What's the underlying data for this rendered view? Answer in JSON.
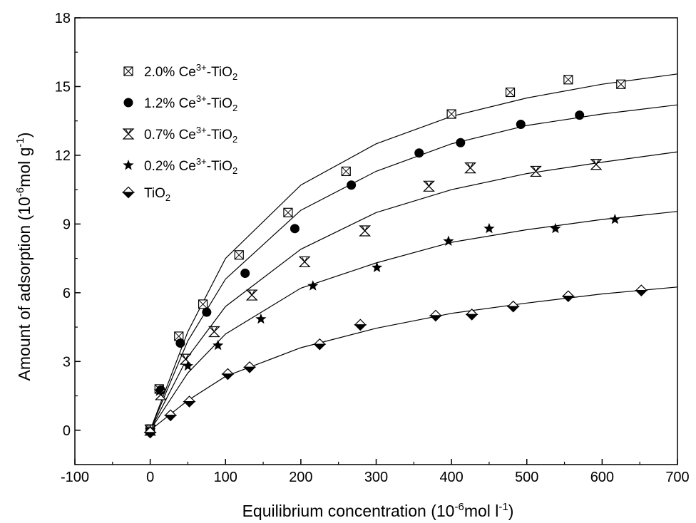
{
  "chart_data": {
    "type": "scatter",
    "title": "",
    "xlabel": {
      "prefix": "Equilibrium concentration (10",
      "exp": "-6",
      "mid": "mol l",
      "exp2": "-1",
      "suffix": ")"
    },
    "ylabel": {
      "prefix": "Amount of adsorption (10",
      "exp": "-6",
      "mid": "mol g",
      "exp2": "-1",
      "suffix": ")"
    },
    "xlim": [
      -100,
      700
    ],
    "ylim": [
      -1.5,
      18
    ],
    "xticks": [
      -100,
      0,
      100,
      200,
      300,
      400,
      500,
      600,
      700
    ],
    "yticks": [
      0,
      3,
      6,
      9,
      12,
      15,
      18
    ],
    "grid": false,
    "legend_position": "top-left",
    "series": [
      {
        "name": {
          "pre": "2.0% Ce",
          "sup": "3+",
          "mid": "-TiO",
          "sub": "2"
        },
        "marker": "square-x",
        "x": [
          0,
          12,
          38,
          70,
          118,
          183,
          260,
          400,
          478,
          555,
          625
        ],
        "y": [
          0.05,
          1.8,
          4.1,
          5.5,
          7.65,
          9.5,
          11.3,
          13.8,
          14.75,
          15.3,
          15.1
        ],
        "fit": {
          "x": [
            0,
            50,
            100,
            200,
            300,
            400,
            500,
            600,
            700
          ],
          "y": [
            0,
            4.3,
            7.5,
            10.7,
            12.5,
            13.7,
            14.5,
            15.1,
            15.55
          ]
        }
      },
      {
        "name": {
          "pre": "1.2% Ce",
          "sup": "3+",
          "mid": "-TiO",
          "sub": "2"
        },
        "marker": "circle",
        "x": [
          0,
          14,
          40,
          75,
          126,
          192,
          267,
          357,
          412,
          492,
          570
        ],
        "y": [
          0.0,
          1.75,
          3.8,
          5.15,
          6.85,
          8.8,
          10.7,
          12.1,
          12.55,
          13.35,
          13.75
        ],
        "fit": {
          "x": [
            0,
            50,
            100,
            200,
            300,
            400,
            500,
            600,
            700
          ],
          "y": [
            0,
            3.9,
            6.6,
            9.6,
            11.3,
            12.5,
            13.3,
            13.8,
            14.2
          ]
        }
      },
      {
        "name": {
          "pre": "0.7% Ce",
          "sup": "3+",
          "mid": "-TiO",
          "sub": "2"
        },
        "marker": "hourglass",
        "x": [
          0,
          14,
          47,
          85,
          135,
          205,
          285,
          370,
          425,
          512,
          592
        ],
        "y": [
          0.0,
          1.55,
          3.1,
          4.3,
          5.9,
          7.35,
          8.7,
          10.65,
          11.45,
          11.3,
          11.6
        ],
        "fit": {
          "x": [
            0,
            50,
            100,
            200,
            300,
            400,
            500,
            600,
            700
          ],
          "y": [
            0,
            3.2,
            5.4,
            7.9,
            9.5,
            10.5,
            11.2,
            11.7,
            12.15
          ]
        }
      },
      {
        "name": {
          "pre": "0.2% Ce",
          "sup": "3+",
          "mid": "-TiO",
          "sub": "2"
        },
        "marker": "star",
        "x": [
          0,
          12,
          50,
          90,
          147,
          216,
          301,
          396,
          450,
          538,
          617
        ],
        "y": [
          0.0,
          1.7,
          2.8,
          3.7,
          4.85,
          6.3,
          7.1,
          8.25,
          8.8,
          8.8,
          9.2
        ],
        "fit": {
          "x": [
            0,
            50,
            100,
            200,
            300,
            400,
            500,
            600,
            700
          ],
          "y": [
            0,
            2.5,
            4.2,
            6.2,
            7.3,
            8.2,
            8.75,
            9.2,
            9.55
          ]
        }
      },
      {
        "name": {
          "pre": "TiO",
          "sup": "",
          "mid": "",
          "sub": "2"
        },
        "marker": "diamond",
        "x": [
          0,
          27,
          52,
          103,
          132,
          225,
          279,
          379,
          427,
          482,
          555,
          652
        ],
        "y": [
          -0.1,
          0.65,
          1.25,
          2.45,
          2.75,
          3.75,
          4.6,
          5.0,
          5.05,
          5.4,
          5.85,
          6.1
        ],
        "fit": {
          "x": [
            0,
            50,
            100,
            200,
            300,
            400,
            500,
            600,
            700
          ],
          "y": [
            0,
            1.3,
            2.35,
            3.6,
            4.45,
            5.1,
            5.55,
            5.95,
            6.25
          ]
        }
      }
    ]
  }
}
